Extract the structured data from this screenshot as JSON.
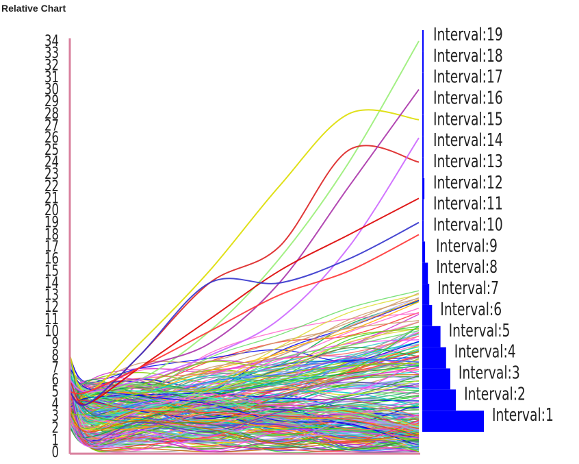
{
  "title": "Relative Chart",
  "colors": {
    "axis": "#d8809e",
    "histogram": "#0000ff"
  },
  "chart_data": [
    {
      "type": "line",
      "series_count": "many (~250 curves)",
      "y_tick_labels": [
        "0",
        "1",
        "2",
        "3",
        "4",
        "5",
        "6",
        "7",
        "8",
        "9",
        "10",
        "11",
        "12",
        "13",
        "14",
        "15",
        "16",
        "17",
        "18",
        "19",
        "20",
        "21",
        "22",
        "23",
        "24",
        "25",
        "26",
        "27",
        "28",
        "29",
        "30",
        "31",
        "32",
        "33",
        "34"
      ],
      "ylim": [
        0,
        34
      ],
      "highlighted_series": [
        {
          "color": "#99ee77",
          "x": [
            0,
            0.05,
            0.2,
            0.4,
            0.6,
            0.8,
            1.0
          ],
          "y": [
            6,
            5,
            6,
            10,
            16,
            24,
            34
          ]
        },
        {
          "color": "#dddd00",
          "x": [
            0,
            0.05,
            0.2,
            0.4,
            0.6,
            0.8,
            1.0
          ],
          "y": [
            8,
            5,
            9,
            15,
            22,
            28,
            27.5
          ]
        },
        {
          "color": "#dd2222",
          "x": [
            0,
            0.05,
            0.2,
            0.4,
            0.6,
            0.8,
            1.0
          ],
          "y": [
            6,
            4,
            8,
            14,
            17,
            25,
            24
          ]
        },
        {
          "color": "#aa33aa",
          "x": [
            0,
            0.05,
            0.2,
            0.4,
            0.6,
            0.8,
            1.0
          ],
          "y": [
            6,
            5,
            7,
            9,
            14,
            22,
            30
          ]
        },
        {
          "color": "#cc66ff",
          "x": [
            0,
            0.05,
            0.2,
            0.4,
            0.6,
            0.8,
            1.0
          ],
          "y": [
            6,
            5,
            6,
            8,
            11,
            17,
            26
          ]
        },
        {
          "color": "#dd0000",
          "x": [
            0,
            0.05,
            0.2,
            0.4,
            0.6,
            0.8,
            1.0
          ],
          "y": [
            5,
            4,
            7,
            11,
            15,
            18,
            21
          ]
        },
        {
          "color": "#3333cc",
          "x": [
            0,
            0.05,
            0.2,
            0.4,
            0.6,
            0.8,
            1.0
          ],
          "y": [
            5,
            4,
            8,
            14,
            14,
            16,
            19
          ]
        },
        {
          "color": "#ff3333",
          "x": [
            0,
            0.05,
            0.2,
            0.4,
            0.6,
            0.8,
            1.0
          ],
          "y": [
            5,
            5,
            7,
            10,
            13,
            15,
            18
          ]
        }
      ]
    },
    {
      "type": "bar",
      "orientation": "horizontal",
      "categories": [
        "Interval:1",
        "Interval:2",
        "Interval:3",
        "Interval:4",
        "Interval:5",
        "Interval:6",
        "Interval:7",
        "Interval:8",
        "Interval:9",
        "Interval:10",
        "Interval:11",
        "Interval:12",
        "Interval:13",
        "Interval:14",
        "Interval:15",
        "Interval:16",
        "Interval:17",
        "Interval:18",
        "Interval:19"
      ],
      "values": [
        88,
        48,
        40,
        34,
        26,
        14,
        10,
        8,
        4,
        2,
        2,
        3,
        1,
        1,
        2,
        1,
        1,
        2,
        1
      ],
      "value_scale": "relative"
    }
  ]
}
